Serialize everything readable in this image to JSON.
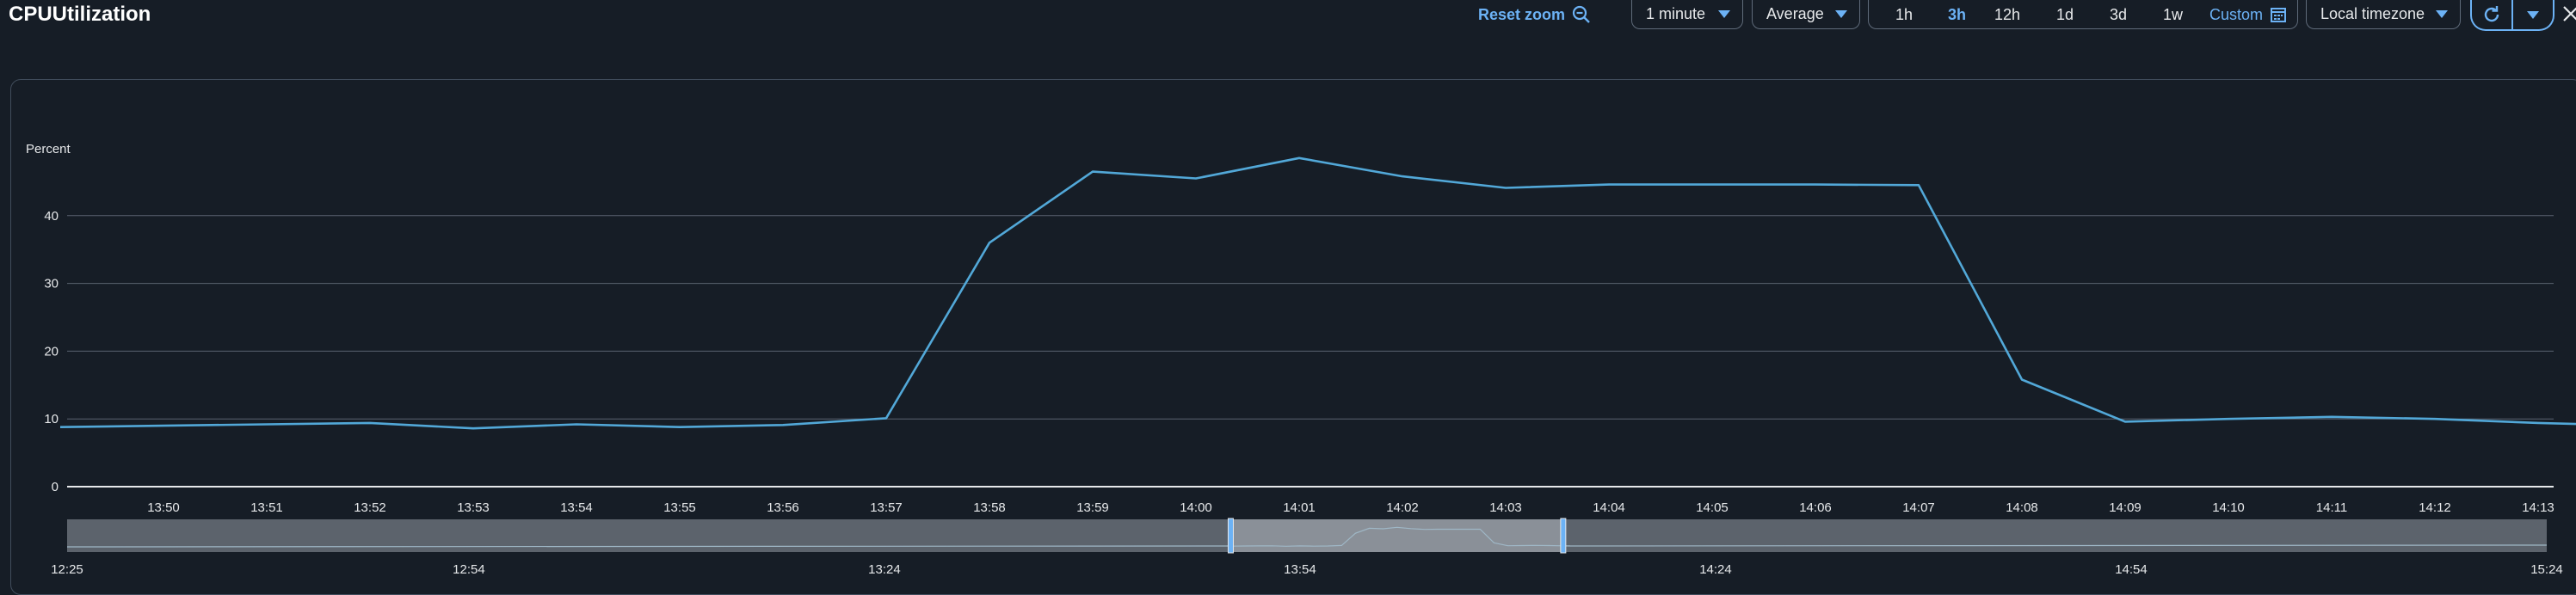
{
  "header": {
    "title": "CPUUtilization",
    "reset_zoom": "Reset zoom",
    "period": "1 minute",
    "statistic": "Average",
    "ranges": [
      "1h",
      "3h",
      "12h",
      "1d",
      "3d",
      "1w"
    ],
    "active_range": "3h",
    "custom_label": "Custom",
    "timezone": "Local timezone"
  },
  "colors": {
    "accent": "#6cb2f5",
    "series": "#52a8d8"
  },
  "icons": [
    "zoom-out-icon",
    "calendar-icon",
    "refresh-icon",
    "chevron-down-icon",
    "close-icon"
  ],
  "chart_data": {
    "type": "line",
    "ylabel": "Percent",
    "ylim": [
      0,
      50
    ],
    "yticks": [
      0,
      10,
      20,
      30,
      40
    ],
    "grid": true,
    "x_labels": [
      "13:50",
      "13:51",
      "13:52",
      "13:53",
      "13:54",
      "13:55",
      "13:56",
      "13:57",
      "13:58",
      "13:59",
      "14:00",
      "14:01",
      "14:02",
      "14:03",
      "14:04",
      "14:05",
      "14:06",
      "14:07",
      "14:08",
      "14:09",
      "14:10",
      "14:11",
      "14:12",
      "14:13"
    ],
    "series": [
      {
        "x": [
          "13:49",
          "13:50",
          "13:51",
          "13:52",
          "13:53",
          "13:54",
          "13:55",
          "13:56",
          "13:57",
          "13:58",
          "13:59",
          "14:00",
          "14:01",
          "14:02",
          "14:03",
          "14:04",
          "14:05",
          "14:06",
          "14:07",
          "14:08",
          "14:09",
          "14:10",
          "14:11",
          "14:12",
          "14:13",
          "14:13:30"
        ],
        "values": [
          8.8,
          9.0,
          9.2,
          9.4,
          8.6,
          9.2,
          8.8,
          9.1,
          10.1,
          36.0,
          46.5,
          45.5,
          48.5,
          45.8,
          44.1,
          44.6,
          44.6,
          44.6,
          44.5,
          15.8,
          9.6,
          10.0,
          10.3,
          10.0,
          9.4,
          9.2
        ]
      }
    ],
    "navigator": {
      "x_labels": [
        "12:25",
        "12:54",
        "13:24",
        "13:54",
        "14:24",
        "14:54",
        "15:24"
      ],
      "selection": [
        "13:49",
        "14:13"
      ]
    }
  }
}
